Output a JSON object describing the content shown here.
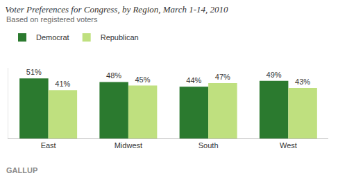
{
  "chart_data": {
    "type": "bar",
    "title": "Voter Preferences for Congress, by Region, March 1-14, 2010",
    "subtitle": "Based on registered voters",
    "annotations": [
      "GALLUP"
    ],
    "categories": [
      "East",
      "Midwest",
      "South",
      "West"
    ],
    "series": [
      {
        "name": "Democrat",
        "color": "#2b7a2f",
        "values": [
          51,
          48,
          44,
          49
        ],
        "value_labels": [
          "51%",
          "48%",
          "44%",
          "49%"
        ]
      },
      {
        "name": "Republican",
        "color": "#bfe07f",
        "values": [
          41,
          45,
          47,
          43
        ],
        "value_labels": [
          "41%",
          "45%",
          "47%",
          "43%"
        ]
      }
    ],
    "ylim": [
      0,
      60
    ],
    "yticks": [],
    "tick_labels": "x",
    "grid": false,
    "legend": "top-left",
    "data_labels": true
  }
}
